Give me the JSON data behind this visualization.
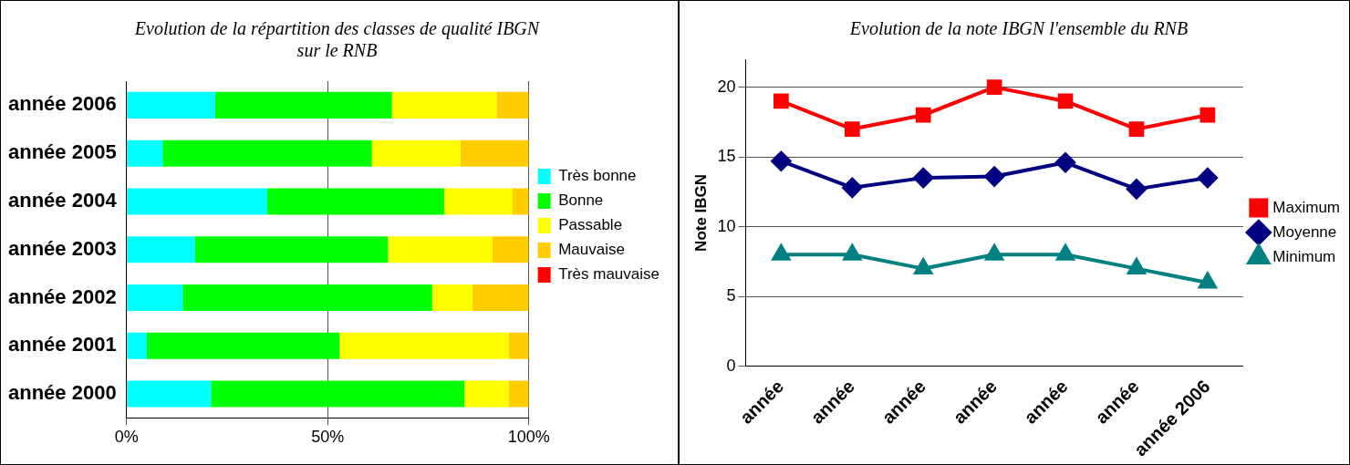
{
  "chart_data": [
    {
      "type": "bar",
      "orientation": "horizontal",
      "stacked": true,
      "title": "Evolution de la répartition des classes de qualité IBGN sur le RNB",
      "categories": [
        "année 2006",
        "année 2005",
        "année 2004",
        "année 2003",
        "année 2002",
        "année 2001",
        "année 2000"
      ],
      "series": [
        {
          "name": "Très bonne",
          "color": "#00ffff",
          "values": [
            22,
            9,
            35,
            17,
            14,
            5,
            21
          ]
        },
        {
          "name": "Bonne",
          "color": "#00ff00",
          "values": [
            44,
            52,
            44,
            48,
            62,
            48,
            63
          ]
        },
        {
          "name": "Passable",
          "color": "#ffff00",
          "values": [
            26,
            22,
            17,
            26,
            10,
            42,
            11
          ]
        },
        {
          "name": "Mauvaise",
          "color": "#ffcc00",
          "values": [
            8,
            17,
            4,
            9,
            14,
            5,
            5
          ]
        },
        {
          "name": "Très mauvaise",
          "color": "#ff0000",
          "values": [
            0,
            0,
            0,
            0,
            0,
            0,
            0
          ]
        }
      ],
      "xlim": [
        0,
        100
      ],
      "xticks": [
        {
          "value": 0,
          "label": "0%"
        },
        {
          "value": 50,
          "label": "50%"
        },
        {
          "value": 100,
          "label": "100%"
        }
      ],
      "grid": "x",
      "legend": "right"
    },
    {
      "type": "line",
      "title": "Evolution de la note IBGN l'ensemble du RNB",
      "ylabel": "Note IBGN",
      "categories": [
        "année",
        "année",
        "année",
        "année",
        "année",
        "année",
        "année 2006"
      ],
      "series": [
        {
          "name": "Maximum",
          "color": "#ff0000",
          "marker": "square",
          "values": [
            19,
            17,
            18,
            20,
            19,
            17,
            18
          ]
        },
        {
          "name": "Moyenne",
          "color": "#000080",
          "marker": "diamond",
          "values": [
            14.7,
            12.8,
            13.5,
            13.6,
            14.6,
            12.7,
            13.5
          ]
        },
        {
          "name": "Minimum",
          "color": "#008080",
          "marker": "triangle",
          "values": [
            8,
            8,
            7,
            8,
            8,
            7,
            6
          ]
        }
      ],
      "ylim": [
        0,
        22
      ],
      "yticks": [
        0,
        5,
        10,
        15,
        20
      ],
      "grid": "y",
      "legend": "right"
    }
  ]
}
